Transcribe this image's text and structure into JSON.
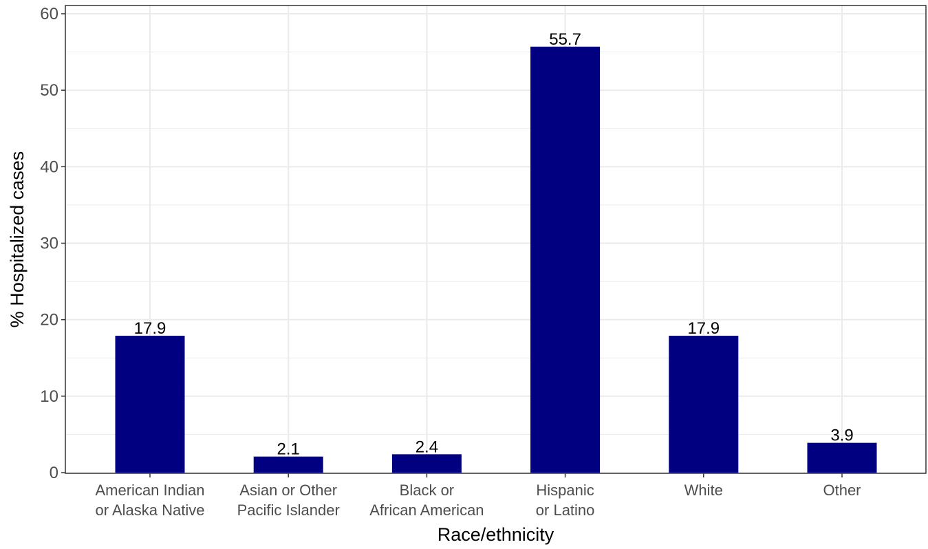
{
  "chart_data": {
    "type": "bar",
    "categories": [
      [
        "American Indian",
        "or Alaska Native"
      ],
      [
        "Asian or Other",
        "Pacific Islander"
      ],
      [
        "Black or",
        "African American"
      ],
      [
        "Hispanic",
        "or Latino"
      ],
      [
        "White"
      ],
      [
        "Other"
      ]
    ],
    "values": [
      17.9,
      2.1,
      2.4,
      55.7,
      17.9,
      3.9
    ],
    "data_labels": [
      "17.9",
      "2.1",
      "2.4",
      "55.7",
      "17.9",
      "3.9"
    ],
    "xlabel": "Race/ethnicity",
    "ylabel": "% Hospitalized cases",
    "ylim": [
      0,
      60
    ],
    "yticks": [
      0,
      10,
      20,
      30,
      40,
      50,
      60
    ],
    "grid": true,
    "bar_color": "#000080",
    "grid_color": "#ebebeb",
    "panel_border_color": "#333333"
  }
}
